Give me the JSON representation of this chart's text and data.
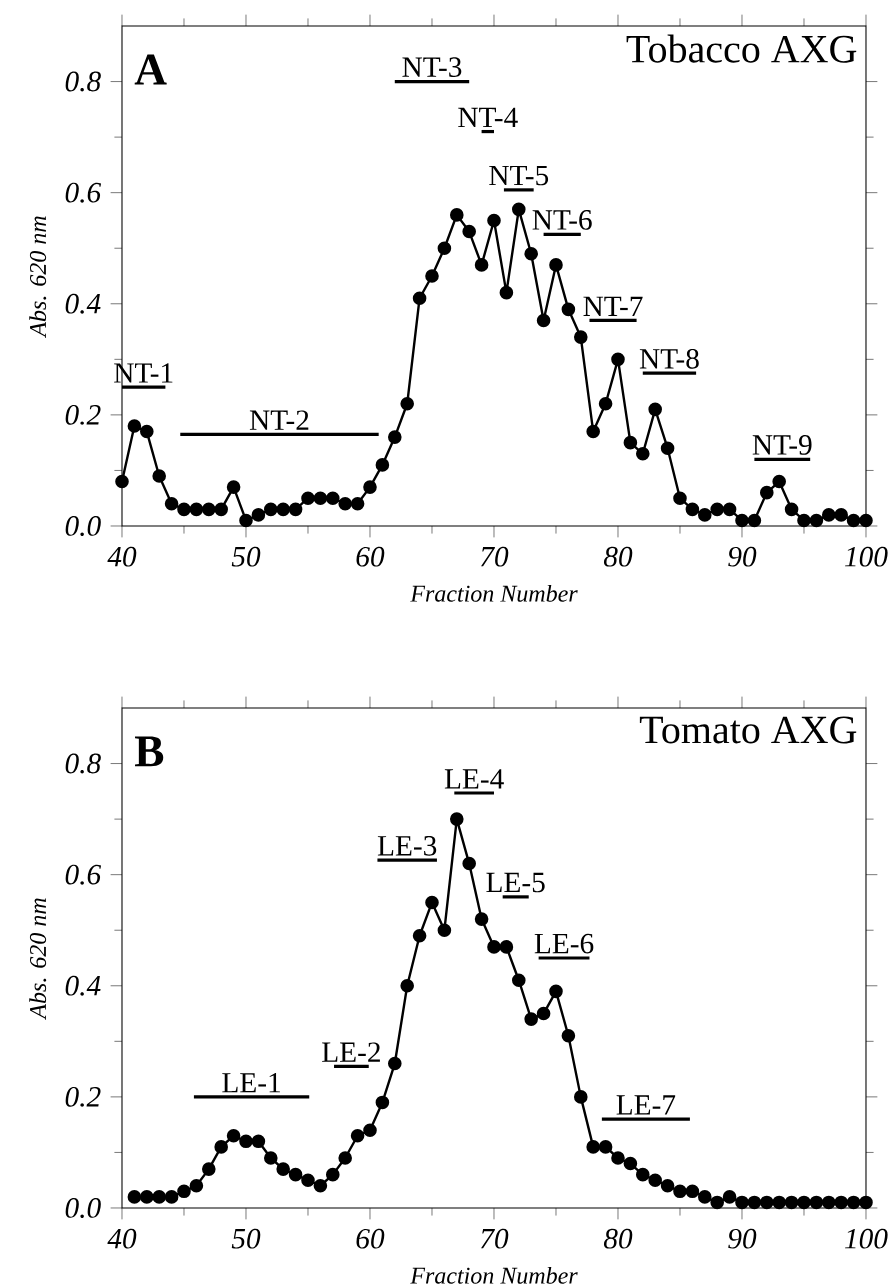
{
  "chart_data": [
    {
      "type": "line",
      "title": "Tobacco AXG",
      "xlabel": "Fraction Number",
      "ylabel": "Abs. 620 nm",
      "marker": "circle",
      "annotations": [
        "A",
        {
          "text": "NT-1",
          "x": 41.75,
          "y": 0.25
        },
        {
          "text": "NT-2",
          "x": 52.7,
          "y": 0.165
        },
        {
          "text": "NT-3",
          "x": 65,
          "y": 0.8
        },
        {
          "text": "NT-4",
          "x": 69.5,
          "y": 0.71
        },
        {
          "text": "NT-5",
          "x": 72,
          "y": 0.605
        },
        {
          "text": "NT-6",
          "x": 75.5,
          "y": 0.525
        },
        {
          "text": "NT-7",
          "x": 79.6,
          "y": 0.37
        },
        {
          "text": "NT-8",
          "x": 84.15,
          "y": 0.275
        },
        {
          "text": "NT-9",
          "x": 93.25,
          "y": 0.12
        }
      ],
      "series": [
        {
          "color": "#000000",
          "x": [
            40,
            41,
            42,
            43,
            44,
            45,
            46,
            47,
            48,
            49,
            50,
            51,
            52,
            53,
            54,
            55,
            56,
            57,
            58,
            59,
            60,
            61,
            62,
            63,
            64,
            65,
            66,
            67,
            68,
            69,
            70,
            71,
            72,
            73,
            74,
            75,
            76,
            77,
            78,
            79,
            80,
            81,
            82,
            83,
            84,
            85,
            86,
            87,
            88,
            89,
            90,
            91,
            92,
            93,
            94,
            95,
            96,
            97,
            98,
            99,
            100
          ],
          "values": [
            0.08,
            0.18,
            0.17,
            0.09,
            0.04,
            0.03,
            0.03,
            0.03,
            0.03,
            0.07,
            0.01,
            0.02,
            0.03,
            0.03,
            0.03,
            0.05,
            0.05,
            0.05,
            0.04,
            0.04,
            0.07,
            0.11,
            0.16,
            0.22,
            0.41,
            0.45,
            0.5,
            0.56,
            0.53,
            0.47,
            0.55,
            0.42,
            0.57,
            0.49,
            0.37,
            0.47,
            0.39,
            0.34,
            0.17,
            0.22,
            0.3,
            0.15,
            0.13,
            0.21,
            0.14,
            0.05,
            0.03,
            0.02,
            0.03,
            0.03,
            0.01,
            0.01,
            0.06,
            0.08,
            0.03,
            0.01,
            0.01,
            0.02,
            0.02,
            0.01,
            0.01
          ]
        },
        {
          "color": "#000000",
          "marker": "none",
          "x": [
            40,
            43.5
          ],
          "values": [
            0.25,
            0.25
          ]
        },
        {
          "color": "#000000",
          "marker": "none",
          "x": [
            44.7,
            60.7
          ],
          "values": [
            0.165,
            0.165
          ]
        },
        {
          "color": "#000000",
          "marker": "none",
          "x": [
            62,
            68
          ],
          "values": [
            0.8,
            0.8
          ]
        },
        {
          "color": "#000000",
          "marker": "none",
          "x": [
            69,
            70
          ],
          "values": [
            0.71,
            0.71
          ]
        },
        {
          "color": "#000000",
          "marker": "none",
          "x": [
            70.8,
            73.2
          ],
          "values": [
            0.605,
            0.605
          ]
        },
        {
          "color": "#000000",
          "marker": "none",
          "x": [
            74,
            77
          ],
          "values": [
            0.525,
            0.525
          ]
        },
        {
          "color": "#000000",
          "marker": "none",
          "x": [
            77.7,
            81.5
          ],
          "values": [
            0.37,
            0.37
          ]
        },
        {
          "color": "#000000",
          "marker": "none",
          "x": [
            82,
            86.3
          ],
          "values": [
            0.275,
            0.275
          ]
        },
        {
          "color": "#000000",
          "marker": "none",
          "x": [
            91,
            95.5
          ],
          "values": [
            0.12,
            0.12
          ]
        }
      ],
      "xlim": [
        40,
        100
      ],
      "ylim": [
        0,
        0.9
      ],
      "xticks": [
        40,
        50,
        60,
        70,
        80,
        90,
        100
      ],
      "yticks": [
        {
          "value": 0,
          "label": "0.0"
        },
        {
          "value": 0.2,
          "label": "0.2"
        },
        {
          "value": 0.4,
          "label": "0.4"
        },
        {
          "value": 0.6,
          "label": "0.6"
        },
        {
          "value": 0.8,
          "label": "0.8"
        }
      ]
    },
    {
      "type": "line",
      "title": "Tomato AXG",
      "xlabel": "Fraction Number",
      "ylabel": "Abs. 620 nm",
      "marker": "circle",
      "annotations": [
        "B",
        {
          "text": "LE-1",
          "x": 50.45,
          "y": 0.2
        },
        {
          "text": "LE-2",
          "x": 58.5,
          "y": 0.255
        },
        {
          "text": "LE-3",
          "x": 63,
          "y": 0.626
        },
        {
          "text": "LE-4",
          "x": 68.4,
          "y": 0.747
        },
        {
          "text": "LE-5",
          "x": 71.75,
          "y": 0.56
        },
        {
          "text": "LE-6",
          "x": 75.65,
          "y": 0.45
        },
        {
          "text": "LE-7",
          "x": 82.25,
          "y": 0.16
        }
      ],
      "series": [
        {
          "color": "#000000",
          "x": [
            41,
            42,
            43,
            44,
            45,
            46,
            47,
            48,
            49,
            50,
            51,
            52,
            53,
            54,
            55,
            56,
            57,
            58,
            59,
            60,
            61,
            62,
            63,
            64,
            65,
            66,
            67,
            68,
            69,
            70,
            71,
            72,
            73,
            74,
            75,
            76,
            77,
            78,
            79,
            80,
            81,
            82,
            83,
            84,
            85,
            86,
            87,
            88,
            89,
            90,
            91,
            92,
            93,
            94,
            95,
            96,
            97,
            98,
            99,
            100
          ],
          "values": [
            0.02,
            0.02,
            0.02,
            0.02,
            0.03,
            0.04,
            0.07,
            0.11,
            0.13,
            0.12,
            0.12,
            0.09,
            0.07,
            0.06,
            0.05,
            0.04,
            0.06,
            0.09,
            0.13,
            0.14,
            0.19,
            0.26,
            0.4,
            0.49,
            0.55,
            0.5,
            0.7,
            0.62,
            0.52,
            0.47,
            0.47,
            0.41,
            0.34,
            0.35,
            0.39,
            0.31,
            0.2,
            0.11,
            0.11,
            0.09,
            0.08,
            0.06,
            0.05,
            0.04,
            0.03,
            0.03,
            0.02,
            0.01,
            0.02,
            0.01,
            0.01,
            0.01,
            0.01,
            0.01,
            0.01,
            0.01,
            0.01,
            0.01,
            0.01,
            0.01
          ]
        },
        {
          "color": "#000000",
          "marker": "none",
          "x": [
            45.8,
            55.1
          ],
          "values": [
            0.2,
            0.2
          ]
        },
        {
          "color": "#000000",
          "marker": "none",
          "x": [
            57.1,
            59.9
          ],
          "values": [
            0.255,
            0.255
          ]
        },
        {
          "color": "#000000",
          "marker": "none",
          "x": [
            60.6,
            65.4
          ],
          "values": [
            0.626,
            0.626
          ]
        },
        {
          "color": "#000000",
          "marker": "none",
          "x": [
            66.8,
            70
          ],
          "values": [
            0.747,
            0.747
          ]
        },
        {
          "color": "#000000",
          "marker": "none",
          "x": [
            70.7,
            72.8
          ],
          "values": [
            0.56,
            0.56
          ]
        },
        {
          "color": "#000000",
          "marker": "none",
          "x": [
            73.6,
            77.7
          ],
          "values": [
            0.45,
            0.45
          ]
        },
        {
          "color": "#000000",
          "marker": "none",
          "x": [
            78.7,
            85.8
          ],
          "values": [
            0.16,
            0.16
          ]
        }
      ],
      "xlim": [
        40,
        100
      ],
      "ylim": [
        0,
        0.9
      ],
      "xticks": [
        40,
        50,
        60,
        70,
        80,
        90,
        100
      ],
      "yticks": [
        {
          "value": 0,
          "label": "0.0"
        },
        {
          "value": 0.2,
          "label": "0.2"
        },
        {
          "value": 0.4,
          "label": "0.4"
        },
        {
          "value": 0.6,
          "label": "0.6"
        },
        {
          "value": 0.8,
          "label": "0.8"
        }
      ]
    }
  ]
}
